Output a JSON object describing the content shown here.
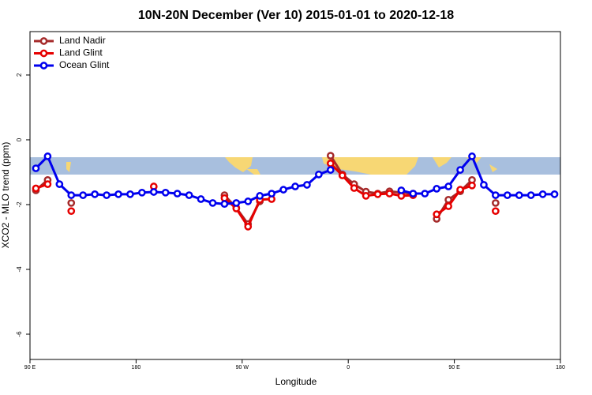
{
  "chart_data": {
    "type": "line",
    "title": "10N-20N December (Ver 10)   2015-01-01 to 2020-12-18",
    "x_label": "Longitude",
    "y_label": "XCO2 - MLO trend (ppm)",
    "x": [
      95,
      105,
      115,
      125,
      135,
      145,
      155,
      165,
      175,
      185,
      195,
      205,
      215,
      225,
      235,
      245,
      255,
      265,
      275,
      285,
      295,
      305,
      315,
      325,
      335,
      345,
      355,
      365,
      375,
      385,
      395,
      405,
      415,
      425,
      435,
      445,
      455,
      465,
      475,
      485,
      495,
      505,
      515,
      525,
      535
    ],
    "xlim": [
      90,
      540
    ],
    "xticks": [
      {
        "value": 90,
        "label": "90 E"
      },
      180,
      {
        "value": 270,
        "label": "90 W"
      },
      {
        "value": 360,
        "label": "0"
      },
      {
        "value": 450,
        "label": "90 E"
      },
      {
        "value": 540,
        "label": "180"
      }
    ],
    "ylim": [
      -6.78,
      3.34
    ],
    "yticks": [
      -6,
      -4,
      -2,
      0,
      2
    ],
    "legend": "top-left",
    "series": [
      {
        "name": "Land Nadir",
        "color": "#a52a2a",
        "values": [
          -1.56,
          -1.24,
          null,
          -1.95,
          null,
          null,
          null,
          null,
          null,
          null,
          null,
          null,
          null,
          null,
          null,
          null,
          -1.71,
          -2.1,
          -2.6,
          -1.9,
          null,
          null,
          null,
          null,
          null,
          -0.49,
          -1.07,
          -1.37,
          -1.6,
          -1.66,
          -1.59,
          -1.63,
          -1.66,
          null,
          -2.44,
          -1.85,
          -1.59,
          -1.24,
          null,
          -1.95,
          null,
          null,
          null,
          null,
          null
        ]
      },
      {
        "name": "Land Glint",
        "color": "#e60000",
        "values": [
          -1.5,
          -1.37,
          null,
          -2.2,
          null,
          null,
          null,
          null,
          null,
          null,
          -1.44,
          null,
          null,
          null,
          null,
          null,
          -1.8,
          -2.12,
          -2.68,
          -1.85,
          -1.83,
          null,
          null,
          null,
          null,
          -0.73,
          -1.1,
          -1.49,
          -1.73,
          -1.68,
          -1.66,
          -1.73,
          -1.71,
          null,
          -2.3,
          -2.05,
          -1.54,
          -1.41,
          null,
          -2.2,
          null,
          null,
          null,
          null,
          null
        ]
      },
      {
        "name": "Ocean Glint",
        "color": "#0000ee",
        "values": [
          -0.88,
          -0.51,
          -1.37,
          -1.71,
          -1.71,
          -1.68,
          -1.71,
          -1.68,
          -1.68,
          -1.63,
          -1.61,
          -1.63,
          -1.66,
          -1.71,
          -1.83,
          -1.95,
          -1.98,
          -1.95,
          -1.9,
          -1.73,
          -1.66,
          -1.54,
          -1.44,
          -1.39,
          -1.07,
          -0.93,
          null,
          null,
          null,
          null,
          null,
          -1.56,
          -1.66,
          -1.66,
          -1.51,
          -1.44,
          -0.93,
          -0.51,
          -1.39,
          -1.71,
          -1.71,
          -1.71,
          -1.71,
          -1.68,
          -1.68
        ]
      }
    ]
  }
}
